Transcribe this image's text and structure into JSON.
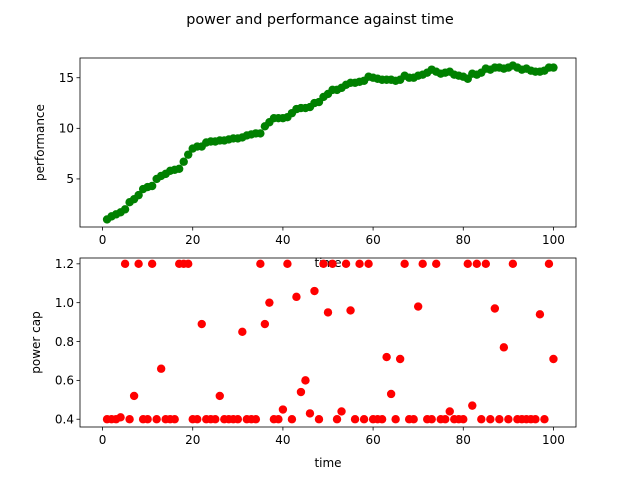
{
  "figure": {
    "title": "power and performance against time"
  },
  "chart_data": [
    {
      "type": "scatter",
      "xlabel": "time",
      "ylabel": "performance",
      "xlim": [
        -5,
        105
      ],
      "ylim": [
        0.25,
        16.95
      ],
      "xticks": [
        0,
        20,
        40,
        60,
        80,
        100
      ],
      "yticks": [
        5,
        10,
        15
      ],
      "grid": false,
      "color": "#008000",
      "series": [
        {
          "x": [
            1,
            2,
            3,
            4,
            5,
            6,
            7,
            8,
            9,
            10,
            11,
            12,
            13,
            14,
            15,
            16,
            17,
            18,
            19,
            20,
            21,
            22,
            23,
            24,
            25,
            26,
            27,
            28,
            29,
            30,
            31,
            32,
            33,
            34,
            35,
            36,
            37,
            38,
            39,
            40,
            41,
            42,
            43,
            44,
            45,
            46,
            47,
            48,
            49,
            50,
            51,
            52,
            53,
            54,
            55,
            56,
            57,
            58,
            59,
            60,
            61,
            62,
            63,
            64,
            65,
            66,
            67,
            68,
            69,
            70,
            71,
            72,
            73,
            74,
            75,
            76,
            77,
            78,
            79,
            80,
            81,
            82,
            83,
            84,
            85,
            86,
            87,
            88,
            89,
            90,
            91,
            92,
            93,
            94,
            95,
            96,
            97,
            98,
            99,
            100
          ],
          "values": [
            1.0,
            1.3,
            1.5,
            1.7,
            2.0,
            2.7,
            3.0,
            3.4,
            4.0,
            4.2,
            4.3,
            5.0,
            5.3,
            5.5,
            5.8,
            5.9,
            6.0,
            6.7,
            7.4,
            8.0,
            8.2,
            8.2,
            8.6,
            8.7,
            8.7,
            8.8,
            8.8,
            8.9,
            9.0,
            9.0,
            9.1,
            9.3,
            9.4,
            9.5,
            9.5,
            10.2,
            10.6,
            11.0,
            11.0,
            11.0,
            11.1,
            11.5,
            11.9,
            12.0,
            12.0,
            12.1,
            12.5,
            12.6,
            13.1,
            13.4,
            13.8,
            13.8,
            14.0,
            14.3,
            14.5,
            14.5,
            14.6,
            14.7,
            15.1,
            15.0,
            14.9,
            14.8,
            14.8,
            14.8,
            14.7,
            14.8,
            15.2,
            15.0,
            15.0,
            15.2,
            15.3,
            15.5,
            15.8,
            15.6,
            15.4,
            15.5,
            15.6,
            15.3,
            15.2,
            15.1,
            14.9,
            15.4,
            15.3,
            15.5,
            15.9,
            15.8,
            16.0,
            16.0,
            15.9,
            16.0,
            16.2,
            16.0,
            15.8,
            15.9,
            15.7,
            15.6,
            15.6,
            15.7,
            16.0,
            16.0
          ]
        }
      ]
    },
    {
      "type": "scatter",
      "xlabel": "time",
      "ylabel": "power cap",
      "xlim": [
        -5,
        105
      ],
      "ylim": [
        0.36,
        1.23
      ],
      "xticks": [
        0,
        20,
        40,
        60,
        80,
        100
      ],
      "yticks": [
        "0.4",
        "0.6",
        "0.8",
        "1.0",
        "1.2"
      ],
      "grid": false,
      "color": "#ff0000",
      "series": [
        {
          "x": [
            1,
            2,
            3,
            4,
            5,
            6,
            7,
            8,
            9,
            10,
            11,
            12,
            13,
            14,
            15,
            16,
            17,
            18,
            19,
            20,
            21,
            22,
            23,
            24,
            25,
            26,
            27,
            28,
            29,
            30,
            31,
            32,
            33,
            34,
            35,
            36,
            37,
            38,
            39,
            40,
            41,
            42,
            43,
            44,
            45,
            46,
            47,
            48,
            49,
            50,
            51,
            52,
            53,
            54,
            55,
            56,
            57,
            58,
            59,
            60,
            61,
            62,
            63,
            64,
            65,
            66,
            67,
            68,
            69,
            70,
            71,
            72,
            73,
            74,
            75,
            76,
            77,
            78,
            79,
            80,
            81,
            82,
            83,
            84,
            85,
            86,
            87,
            88,
            89,
            90,
            91,
            92,
            93,
            94,
            95,
            96,
            97,
            98,
            99,
            100
          ],
          "values": [
            0.4,
            0.4,
            0.4,
            0.41,
            1.2,
            0.4,
            0.52,
            1.2,
            0.4,
            0.4,
            1.2,
            0.4,
            0.66,
            0.4,
            0.4,
            0.4,
            1.2,
            1.2,
            1.2,
            0.4,
            0.4,
            0.89,
            0.4,
            0.4,
            0.4,
            0.52,
            0.4,
            0.4,
            0.4,
            0.4,
            0.85,
            0.4,
            0.4,
            0.4,
            1.2,
            0.89,
            1.0,
            0.4,
            0.4,
            0.45,
            1.2,
            0.4,
            1.03,
            0.54,
            0.6,
            0.43,
            1.06,
            0.4,
            1.2,
            0.95,
            1.2,
            0.4,
            0.44,
            1.2,
            0.96,
            0.4,
            1.2,
            0.4,
            1.2,
            0.4,
            0.4,
            0.4,
            0.72,
            0.53,
            0.4,
            0.71,
            1.2,
            0.4,
            0.4,
            0.98,
            1.2,
            0.4,
            0.4,
            1.2,
            0.4,
            0.4,
            0.44,
            0.4,
            0.4,
            0.4,
            1.2,
            0.47,
            1.2,
            0.4,
            1.2,
            0.4,
            0.97,
            0.4,
            0.77,
            0.4,
            1.2,
            0.4,
            0.4,
            0.4,
            0.4,
            0.4,
            0.94,
            0.4,
            1.2,
            0.71
          ]
        }
      ]
    }
  ]
}
